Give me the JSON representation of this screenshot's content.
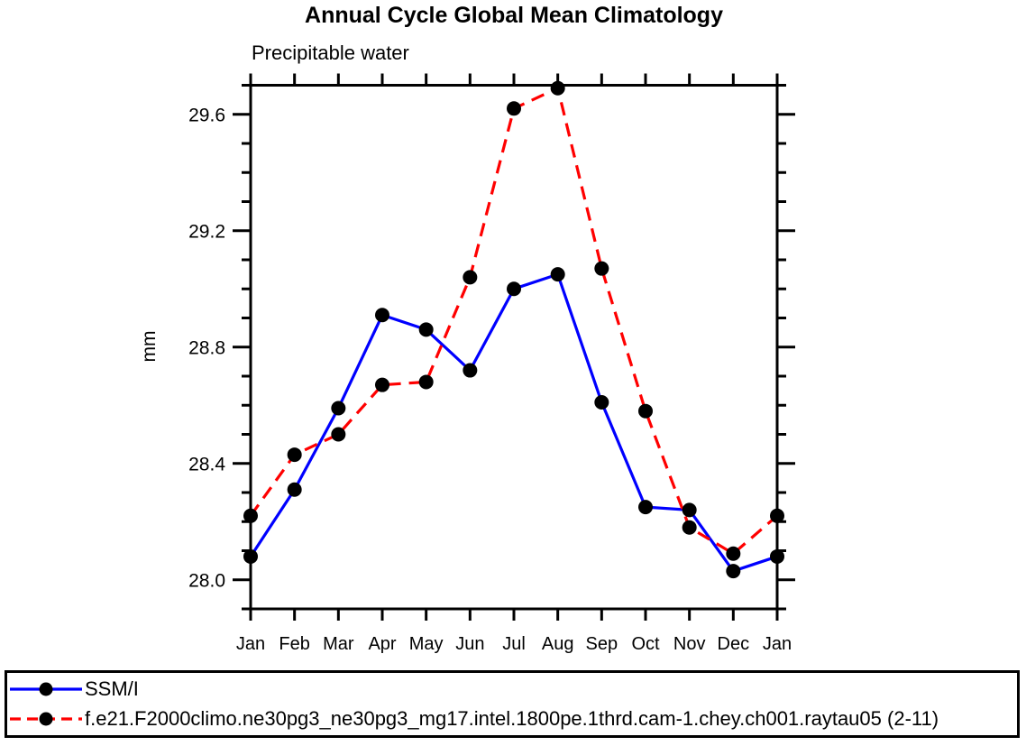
{
  "title": "Annual Cycle Global Mean Climatology",
  "subtitle": "Precipitable water",
  "colors": {
    "axis": "#000000",
    "text": "#000000",
    "background": "#ffffff",
    "ssmi_line": "#0000ff",
    "model_line": "#ff0000",
    "marker": "#000000"
  },
  "chart_data": {
    "type": "line",
    "title": "Annual Cycle Global Mean Climatology",
    "subtitle": "Precipitable water",
    "ylabel": "mm",
    "x_categories": [
      "Jan",
      "Feb",
      "Mar",
      "Apr",
      "May",
      "Jun",
      "Jul",
      "Aug",
      "Sep",
      "Oct",
      "Nov",
      "Dec",
      "Jan"
    ],
    "ylim": [
      27.9,
      29.7
    ],
    "ytick_major": [
      28.0,
      28.4,
      28.8,
      29.2,
      29.6
    ],
    "ytick_minor_step": 0.1,
    "grid": false,
    "legend_position": "bottom-box",
    "series": [
      {
        "name": "SSM/I",
        "color": "#0000ff",
        "line_style": "solid",
        "marker": "filled-circle",
        "marker_color": "#000000",
        "values": [
          28.08,
          28.31,
          28.59,
          28.91,
          28.86,
          28.72,
          29.0,
          29.05,
          28.61,
          28.25,
          28.24,
          28.03,
          28.08
        ]
      },
      {
        "name": "f.e21.F2000climo.ne30pg3_ne30pg3_mg17.intel.1800pe.1thrd.cam-1.chey.ch001.raytau05 (2-11)",
        "color": "#ff0000",
        "line_style": "dashed",
        "marker": "filled-circle",
        "marker_color": "#000000",
        "values": [
          28.22,
          28.43,
          28.5,
          28.67,
          28.68,
          29.04,
          29.62,
          29.69,
          29.07,
          28.58,
          28.18,
          28.09,
          28.22
        ]
      }
    ]
  }
}
